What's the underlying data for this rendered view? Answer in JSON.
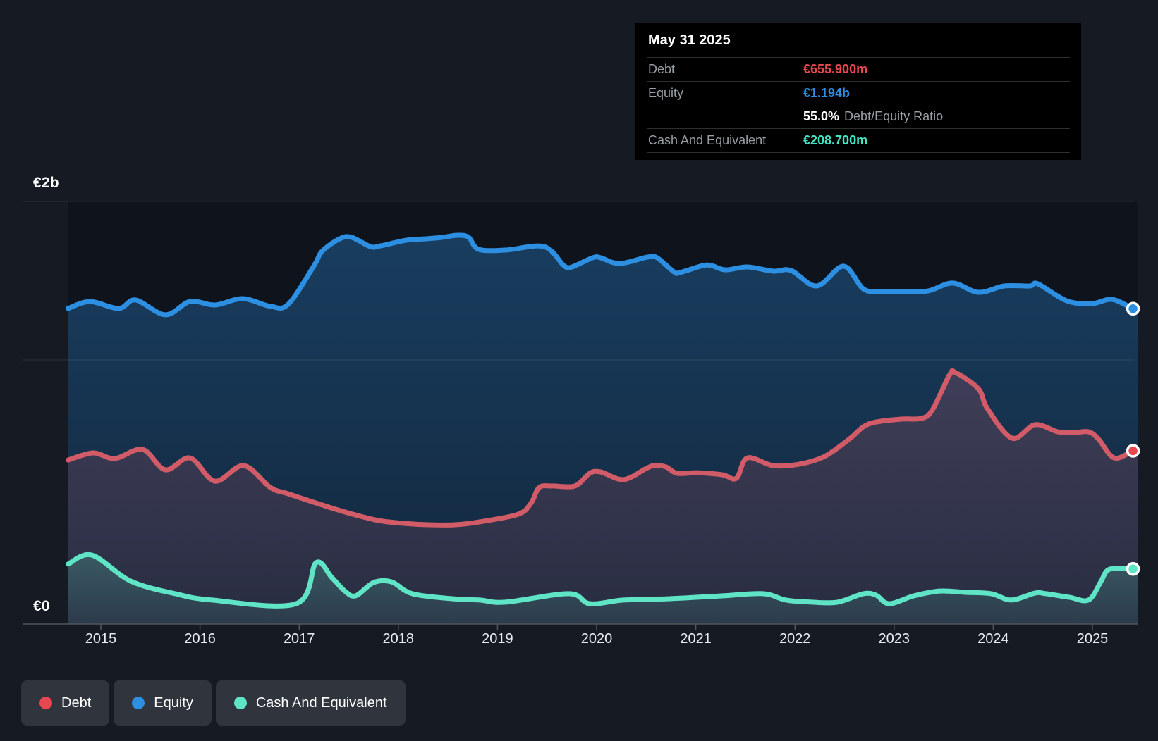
{
  "tooltip": {
    "title": "May 31 2025",
    "rows": [
      {
        "label": "Debt",
        "value": "€655.900m"
      },
      {
        "label": "Equity",
        "value": "€1.194b"
      },
      {
        "label": "Cash And Equivalent",
        "value": "€208.700m"
      }
    ],
    "ratio": {
      "value": "55.0%",
      "label": "Debt/Equity Ratio"
    }
  },
  "legend": {
    "items": [
      {
        "label": "Debt",
        "color": "#e8474f"
      },
      {
        "label": "Equity",
        "color": "#2d8fe2"
      },
      {
        "label": "Cash And Equivalent",
        "color": "#5fe5c6"
      }
    ]
  },
  "theme": {
    "background": "#151a23",
    "plot_background": "#0e131c",
    "grid_line": "rgba(176,186,201,0.15)",
    "axis_line": "#50565e",
    "text_primary": "#ffffff",
    "text_secondary": "#999fa6",
    "tooltip_background": "#000000",
    "legend_chip_background": "#2f343d",
    "debt_accent": "#e8474f",
    "equity_accent": "#2d8fe2",
    "cash_accent": "#40e5c4"
  },
  "chart_data": {
    "type": "area",
    "unit": "€ millions",
    "title": "Debt to Equity History",
    "ylim": [
      0,
      2000
    ],
    "plot_top_value": 1600,
    "gridline_values": [
      1500,
      1000,
      500
    ],
    "y_axis_labels": [
      "€2b",
      "€0"
    ],
    "x_ticks": [
      "2015",
      "2016",
      "2017",
      "2018",
      "2019",
      "2020",
      "2021",
      "2022",
      "2023",
      "2024",
      "2025"
    ],
    "legend_position": "bottom-left",
    "last_point_date": "May 31 2025",
    "series": [
      {
        "name": "Equity",
        "color": "#2d8fe2",
        "marker": "#2d8fe2",
        "last_value_label": "€1.194b",
        "points": [
          [
            2014.67,
            1195
          ],
          [
            2014.89,
            1221
          ],
          [
            2015.18,
            1195
          ],
          [
            2015.35,
            1227
          ],
          [
            2015.65,
            1171
          ],
          [
            2015.9,
            1221
          ],
          [
            2016.15,
            1208
          ],
          [
            2016.43,
            1232
          ],
          [
            2016.71,
            1203
          ],
          [
            2016.89,
            1211
          ],
          [
            2017.15,
            1357
          ],
          [
            2017.23,
            1411
          ],
          [
            2017.41,
            1459
          ],
          [
            2017.53,
            1464
          ],
          [
            2017.72,
            1429
          ],
          [
            2017.82,
            1432
          ],
          [
            2018.08,
            1453
          ],
          [
            2018.29,
            1459
          ],
          [
            2018.44,
            1464
          ],
          [
            2018.6,
            1472
          ],
          [
            2018.71,
            1464
          ],
          [
            2018.81,
            1419
          ],
          [
            2019.08,
            1416
          ],
          [
            2019.47,
            1429
          ],
          [
            2019.67,
            1357
          ],
          [
            2019.75,
            1352
          ],
          [
            2019.96,
            1387
          ],
          [
            2020.04,
            1387
          ],
          [
            2020.23,
            1365
          ],
          [
            2020.51,
            1389
          ],
          [
            2020.61,
            1387
          ],
          [
            2020.78,
            1333
          ],
          [
            2020.84,
            1331
          ],
          [
            2021.07,
            1357
          ],
          [
            2021.16,
            1357
          ],
          [
            2021.3,
            1341
          ],
          [
            2021.52,
            1352
          ],
          [
            2021.78,
            1336
          ],
          [
            2021.96,
            1339
          ],
          [
            2022.22,
            1280
          ],
          [
            2022.49,
            1355
          ],
          [
            2022.69,
            1269
          ],
          [
            2022.87,
            1259
          ],
          [
            2023.07,
            1259
          ],
          [
            2023.34,
            1261
          ],
          [
            2023.59,
            1291
          ],
          [
            2023.85,
            1256
          ],
          [
            2024.11,
            1280
          ],
          [
            2024.37,
            1280
          ],
          [
            2024.45,
            1288
          ],
          [
            2024.74,
            1224
          ],
          [
            2024.99,
            1213
          ],
          [
            2025.2,
            1229
          ],
          [
            2025.41,
            1194
          ]
        ]
      },
      {
        "name": "Debt",
        "color": "#d25b68",
        "marker": "#e8474f",
        "last_value_label": "€655.900m",
        "points": [
          [
            2014.67,
            621
          ],
          [
            2014.92,
            648
          ],
          [
            2015.14,
            627
          ],
          [
            2015.42,
            661
          ],
          [
            2015.65,
            584
          ],
          [
            2015.9,
            629
          ],
          [
            2016.15,
            541
          ],
          [
            2016.44,
            600
          ],
          [
            2016.71,
            517
          ],
          [
            2016.89,
            493
          ],
          [
            2017.28,
            445
          ],
          [
            2017.54,
            416
          ],
          [
            2017.8,
            392
          ],
          [
            2018.06,
            381
          ],
          [
            2018.31,
            376
          ],
          [
            2018.57,
            376
          ],
          [
            2018.82,
            387
          ],
          [
            2019.21,
            416
          ],
          [
            2019.34,
            459
          ],
          [
            2019.42,
            517
          ],
          [
            2019.55,
            523
          ],
          [
            2019.78,
            523
          ],
          [
            2019.93,
            571
          ],
          [
            2020.04,
            576
          ],
          [
            2020.27,
            547
          ],
          [
            2020.5,
            589
          ],
          [
            2020.58,
            600
          ],
          [
            2020.7,
            595
          ],
          [
            2020.81,
            571
          ],
          [
            2021.02,
            573
          ],
          [
            2021.27,
            565
          ],
          [
            2021.41,
            552
          ],
          [
            2021.52,
            629
          ],
          [
            2021.78,
            600
          ],
          [
            2022.04,
            605
          ],
          [
            2022.3,
            635
          ],
          [
            2022.55,
            701
          ],
          [
            2022.69,
            747
          ],
          [
            2022.82,
            765
          ],
          [
            2023.07,
            776
          ],
          [
            2023.28,
            779
          ],
          [
            2023.39,
            813
          ],
          [
            2023.56,
            944
          ],
          [
            2023.62,
            952
          ],
          [
            2023.85,
            891
          ],
          [
            2023.94,
            816
          ],
          [
            2024.19,
            704
          ],
          [
            2024.42,
            755
          ],
          [
            2024.65,
            728
          ],
          [
            2024.82,
            725
          ],
          [
            2024.96,
            728
          ],
          [
            2025.06,
            701
          ],
          [
            2025.22,
            629
          ],
          [
            2025.41,
            655.9
          ]
        ]
      },
      {
        "name": "Cash And Equivalent",
        "color": "#5fe5c6",
        "marker": "#5fe5c6",
        "last_value_label": "€208.700m",
        "points": [
          [
            2014.67,
            227
          ],
          [
            2014.91,
            261
          ],
          [
            2015.3,
            163
          ],
          [
            2015.75,
            115
          ],
          [
            2016.12,
            91
          ],
          [
            2016.97,
            77
          ],
          [
            2017.17,
            232
          ],
          [
            2017.33,
            176
          ],
          [
            2017.46,
            125
          ],
          [
            2017.57,
            107
          ],
          [
            2017.75,
            157
          ],
          [
            2017.93,
            160
          ],
          [
            2018.14,
            115
          ],
          [
            2018.54,
            96
          ],
          [
            2018.82,
            91
          ],
          [
            2019.08,
            83
          ],
          [
            2019.72,
            115
          ],
          [
            2019.93,
            77
          ],
          [
            2020.27,
            91
          ],
          [
            2020.74,
            96
          ],
          [
            2021.27,
            107
          ],
          [
            2021.68,
            115
          ],
          [
            2021.91,
            91
          ],
          [
            2022.17,
            83
          ],
          [
            2022.43,
            83
          ],
          [
            2022.69,
            115
          ],
          [
            2022.82,
            109
          ],
          [
            2022.95,
            77
          ],
          [
            2023.2,
            107
          ],
          [
            2023.46,
            125
          ],
          [
            2023.72,
            120
          ],
          [
            2023.98,
            115
          ],
          [
            2024.18,
            91
          ],
          [
            2024.42,
            117
          ],
          [
            2024.53,
            115
          ],
          [
            2024.77,
            101
          ],
          [
            2024.96,
            91
          ],
          [
            2025.08,
            157
          ],
          [
            2025.15,
            203
          ],
          [
            2025.27,
            211
          ],
          [
            2025.41,
            208.7
          ]
        ]
      }
    ]
  }
}
